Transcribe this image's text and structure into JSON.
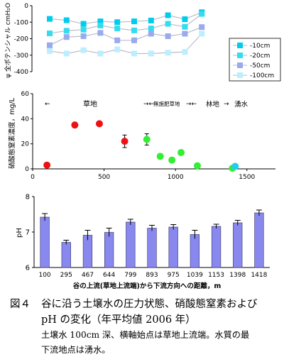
{
  "chart_data": [
    {
      "type": "line",
      "ylabel": "ψ 全ポテンシャル cmH₂O",
      "ylim": [
        -400,
        0
      ],
      "yticks": [
        0,
        -100,
        -200,
        -300,
        -400
      ],
      "x_positions": [
        100,
        295,
        467,
        644,
        799,
        893,
        975,
        1039,
        1153,
        1398,
        1418
      ],
      "series": [
        {
          "name": "-10cm",
          "color": "#00ccee",
          "values": [
            -80,
            -88,
            -110,
            -95,
            -100,
            -95,
            -90,
            -58,
            -82,
            -40,
            null
          ]
        },
        {
          "name": "-20cm",
          "color": "#33ddee",
          "values": [
            -168,
            -152,
            -145,
            -120,
            -138,
            -150,
            -138,
            -110,
            -128,
            -50,
            null
          ]
        },
        {
          "name": "-50cm",
          "color": "#99aaee",
          "values": [
            -240,
            -190,
            -185,
            -165,
            -210,
            -210,
            -170,
            -185,
            -170,
            -130,
            null
          ]
        },
        {
          "name": "-100cm",
          "color": "#bbeeff",
          "values": [
            -275,
            -290,
            -270,
            -290,
            -265,
            -290,
            -290,
            -285,
            -280,
            -170,
            null
          ]
        }
      ],
      "legend_position": "right"
    },
    {
      "type": "scatter",
      "ylabel": "硝酸態窒素濃度，mg/L",
      "xlim": [
        0,
        1700
      ],
      "ylim": [
        0,
        60
      ],
      "xticks": [
        0,
        500,
        1000,
        1500
      ],
      "yticks": [
        0,
        20,
        40,
        60
      ],
      "zones": [
        "草地",
        "無施肥草地",
        "林地",
        "湧水"
      ],
      "points": [
        {
          "x": 100,
          "y": 3,
          "err": 0,
          "group": "草地",
          "color": "#ee1111"
        },
        {
          "x": 295,
          "y": 35,
          "err": 0,
          "group": "草地",
          "color": "#ee1111"
        },
        {
          "x": 467,
          "y": 36,
          "err": 1.5,
          "group": "草地",
          "color": "#ee1111"
        },
        {
          "x": 644,
          "y": 22,
          "err": 5,
          "group": "草地",
          "color": "#ee1111"
        },
        {
          "x": 799,
          "y": 23.5,
          "err": 4.5,
          "group": "無施肥草地",
          "color": "#33ee33"
        },
        {
          "x": 893,
          "y": 10,
          "err": 2,
          "group": "無施肥草地",
          "color": "#33ee33"
        },
        {
          "x": 975,
          "y": 7,
          "err": 2,
          "group": "無施肥草地",
          "color": "#33ee33"
        },
        {
          "x": 1039,
          "y": 13,
          "err": 1,
          "group": "無施肥草地",
          "color": "#33ee33"
        },
        {
          "x": 1153,
          "y": 2.5,
          "err": 0,
          "group": "林地",
          "color": "#33ee33"
        },
        {
          "x": 1398,
          "y": 0.5,
          "err": 0,
          "group": "林地",
          "color": "#33ee33"
        },
        {
          "x": 1418,
          "y": 2,
          "err": 0,
          "group": "湧水",
          "color": "#22ccee"
        }
      ]
    },
    {
      "type": "bar",
      "ylabel": "pH",
      "xlabel": "谷の上流(草地上流端)から下流方向への距離，m",
      "ylim": [
        6,
        8
      ],
      "yticks": [
        6,
        7,
        8
      ],
      "categories": [
        "100",
        "295",
        "467",
        "644",
        "799",
        "893",
        "975",
        "1039",
        "1153",
        "1398",
        "1418"
      ],
      "values": [
        7.42,
        6.71,
        6.91,
        6.99,
        7.28,
        7.11,
        7.14,
        6.93,
        7.16,
        7.26,
        7.54
      ],
      "errors": [
        0.1,
        0.06,
        0.14,
        0.12,
        0.08,
        0.08,
        0.07,
        0.12,
        0.06,
        0.07,
        0.08
      ],
      "bar_color": "#8888ee"
    }
  ],
  "labels": {
    "legend": [
      "-10cm",
      "-20cm",
      "-50cm",
      "-100cm"
    ],
    "zone_grass": "草地",
    "zone_unfert": "無施肥草地",
    "zone_forest": "林地",
    "zone_spring": "湧水",
    "ph_label": "pH",
    "no3_label": "硝酸態窒素濃度，mg/L",
    "psi_label": "ψ 全ポテンシャル cmH₂O",
    "xlabel": "谷の上流(草地上流端)から下流方向への距離，m"
  },
  "caption": {
    "number": "図４",
    "line1": "谷に沿う土壌水の圧力状態、硝酸態窒素および",
    "line2": "pH の変化（年平均値 2006 年）",
    "note1": "土壌水 100cm 深、横軸始点は草地上流端。水質の最",
    "note2": "下流地点は湧水。"
  }
}
